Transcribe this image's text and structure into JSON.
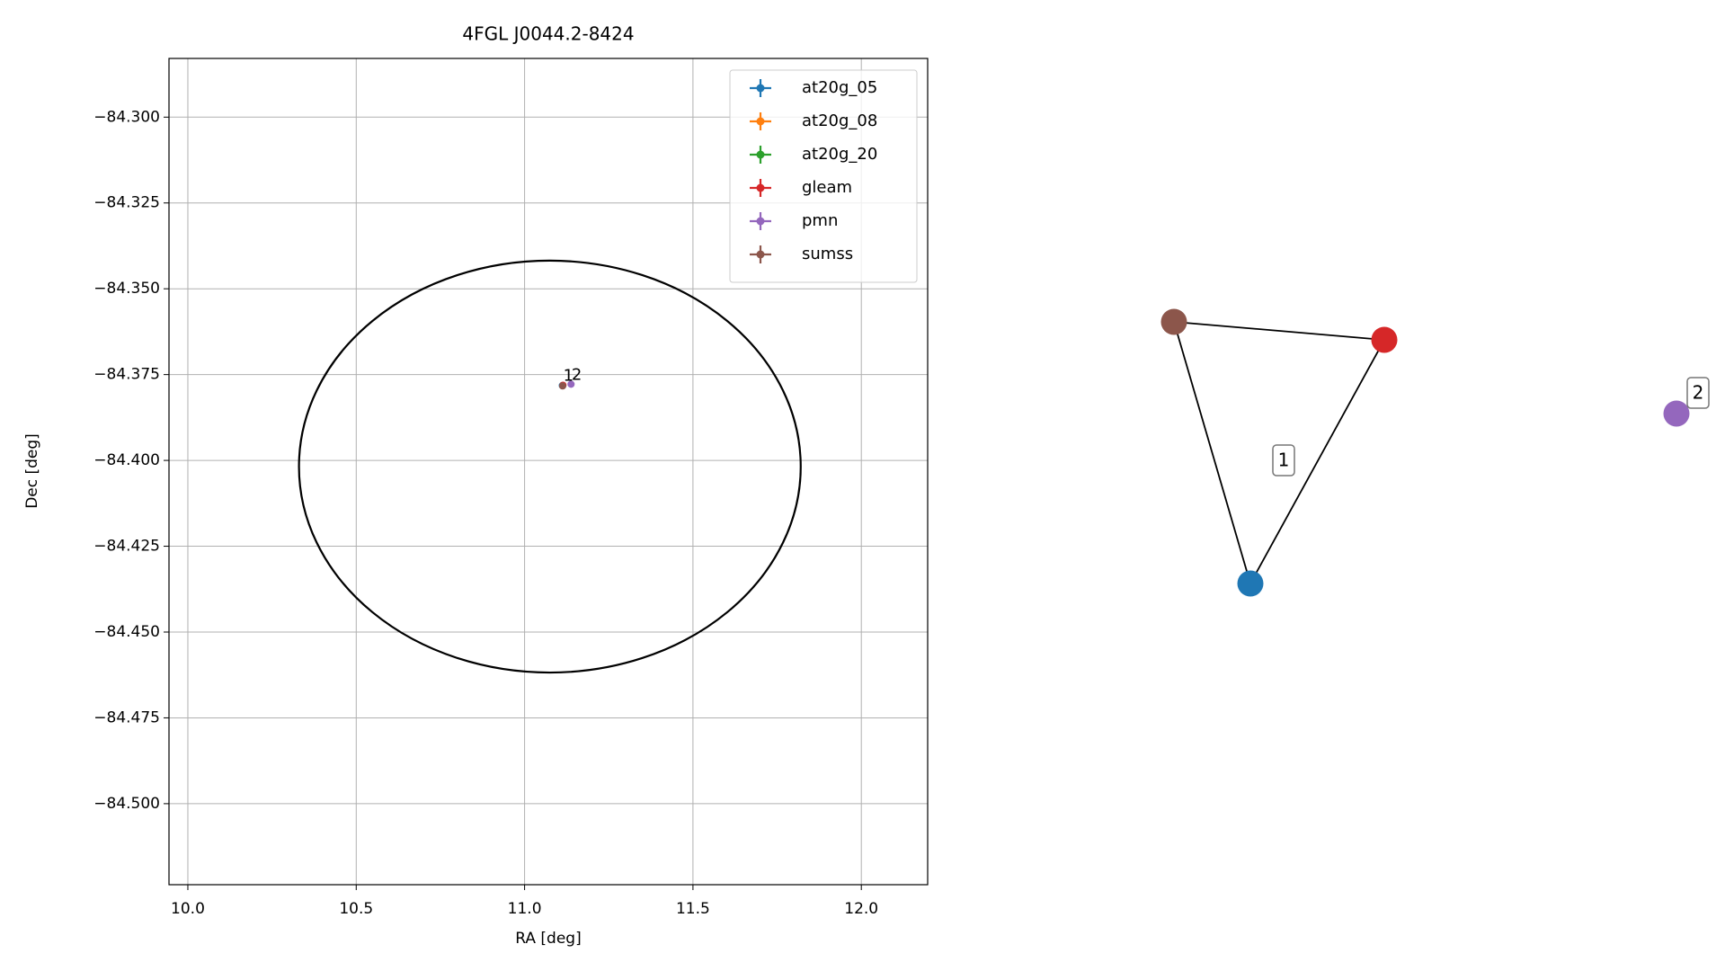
{
  "chart_data": [
    {
      "type": "scatter",
      "title": "4FGL J0044.2-8424",
      "xlabel": "RA [deg]",
      "ylabel": "Dec [deg]",
      "xlim": [
        9.944,
        12.197
      ],
      "ylim": [
        -84.5236,
        -84.2829
      ],
      "xticks": [
        {
          "value": 10,
          "label": "10.0"
        },
        {
          "value": 10.5,
          "label": "10.5"
        },
        {
          "value": 11,
          "label": "11.0"
        },
        {
          "value": 11.5,
          "label": "11.5"
        },
        {
          "value": 12,
          "label": "12.0"
        }
      ],
      "yticks": [
        {
          "value": -84.3,
          "label": "−84.300"
        },
        {
          "value": -84.325,
          "label": "−84.325"
        },
        {
          "value": -84.35,
          "label": "−84.350"
        },
        {
          "value": -84.375,
          "label": "−84.375"
        },
        {
          "value": -84.4,
          "label": "−84.400"
        },
        {
          "value": -84.425,
          "label": "−84.425"
        },
        {
          "value": -84.45,
          "label": "−84.450"
        },
        {
          "value": -84.475,
          "label": "−84.475"
        },
        {
          "value": -84.5,
          "label": "−84.500"
        }
      ],
      "grid": true,
      "legend": "upper right",
      "series": [
        {
          "name": "at20g_05",
          "color": "#1f77b4",
          "x": [
            11.112
          ],
          "y": [
            -84.3782
          ]
        },
        {
          "name": "at20g_08",
          "color": "#ff7f0e",
          "x": [],
          "y": []
        },
        {
          "name": "at20g_20",
          "color": "#2ca02c",
          "x": [],
          "y": []
        },
        {
          "name": "gleam",
          "color": "#d62728",
          "x": [
            11.114
          ],
          "y": [
            -84.3781
          ]
        },
        {
          "name": "pmn",
          "color": "#9467bd",
          "x": [
            11.138
          ],
          "y": [
            -84.3778
          ]
        },
        {
          "name": "sumss",
          "color": "#8c564b",
          "x": [
            11.113
          ],
          "y": [
            -84.3783
          ]
        }
      ],
      "ellipse": {
        "center": [
          11.075,
          -84.4018
        ],
        "width": 1.49,
        "height": 0.12,
        "color": "#000000"
      },
      "annotations": [
        {
          "text": "1",
          "x": 11.13,
          "y": -84.3755
        },
        {
          "text": "2",
          "x": 11.155,
          "y": -84.3752
        }
      ]
    },
    {
      "type": "network",
      "nodes": [
        {
          "color": "#8c564b"
        },
        {
          "color": "#d62728"
        },
        {
          "color": "#1f77b4"
        },
        {
          "color": "#9467bd"
        }
      ],
      "edges": [
        [
          0,
          1
        ],
        [
          1,
          2
        ],
        [
          2,
          0
        ]
      ],
      "groups": [
        {
          "label": "1"
        },
        {
          "label": "2"
        }
      ]
    }
  ]
}
